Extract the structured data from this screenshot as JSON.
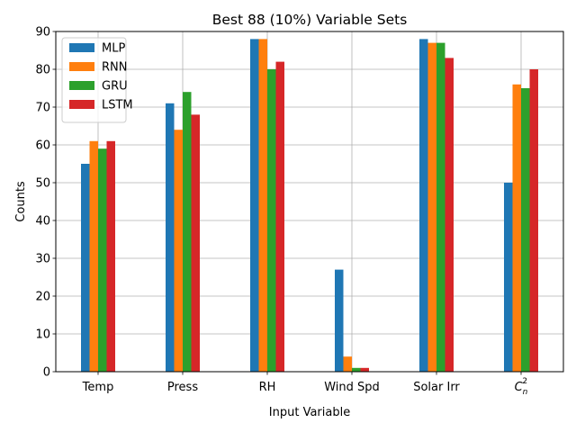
{
  "chart_data": {
    "type": "bar",
    "title": "Best 88 (10%) Variable Sets",
    "xlabel": "Input Variable",
    "ylabel": "Counts",
    "categories": [
      "Temp",
      "Press",
      "RH",
      "Wind Spd",
      "Solar Irr",
      "C_n^2"
    ],
    "category_display": {
      "C_n^2": {
        "base": "C",
        "sub": "n",
        "sup": "2"
      }
    },
    "ylim": [
      0,
      90
    ],
    "yticks": [
      0,
      10,
      20,
      30,
      40,
      50,
      60,
      70,
      80,
      90
    ],
    "grid": true,
    "legend_position": "top-left",
    "series": [
      {
        "name": "MLP",
        "color": "#1f77b4",
        "values": [
          55,
          71,
          88,
          27,
          88,
          50
        ]
      },
      {
        "name": "RNN",
        "color": "#ff7f0e",
        "values": [
          61,
          64,
          88,
          4,
          87,
          76
        ]
      },
      {
        "name": "GRU",
        "color": "#2ca02c",
        "values": [
          59,
          74,
          80,
          1,
          87,
          75
        ]
      },
      {
        "name": "LSTM",
        "color": "#d62728",
        "values": [
          61,
          68,
          82,
          1,
          83,
          80
        ]
      }
    ]
  }
}
